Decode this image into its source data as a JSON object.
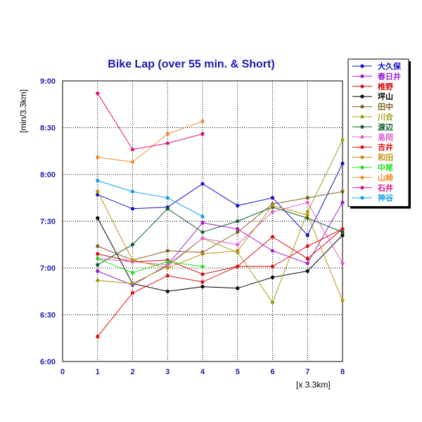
{
  "chart_data": {
    "type": "line",
    "title": "Bike Lap (over 55 min. & Short)",
    "ylabel": "[min/3.3km]",
    "xlabel": "[x 3.3km]",
    "xlim": [
      0,
      8
    ],
    "ylim": [
      360,
      540
    ],
    "x_ticks": [
      0,
      1,
      2,
      3,
      4,
      5,
      6,
      7,
      8
    ],
    "x_tick_labels": [
      "0",
      "1",
      "2",
      "3",
      "4",
      "5",
      "6",
      "7",
      "8"
    ],
    "y_ticks": [
      360,
      390,
      420,
      450,
      480,
      510,
      540
    ],
    "y_tick_labels": [
      "6:00",
      "6:30",
      "7:00",
      "7:30",
      "8:00",
      "8:30",
      "9:00"
    ],
    "grid": true,
    "legend_position": "top-right",
    "series": [
      {
        "name": "大久保",
        "color": "#1010c8",
        "x": [
          1,
          2,
          3,
          4,
          5,
          6,
          7,
          8
        ],
        "y": [
          467,
          458,
          459,
          474,
          460,
          465,
          441,
          487
        ]
      },
      {
        "name": "春日井",
        "color": "#a020d0",
        "x": [
          1,
          2,
          3,
          4,
          5,
          6,
          7,
          8
        ],
        "y": [
          418,
          409,
          422,
          449,
          445,
          431,
          423,
          462
        ]
      },
      {
        "name": "椎野",
        "color": "#d01010",
        "x": [
          1,
          2,
          3,
          4,
          5,
          6,
          7,
          8
        ],
        "y": [
          429,
          424,
          425,
          416,
          421,
          440,
          426,
          445
        ]
      },
      {
        "name": "坪山",
        "color": "#000000",
        "x": [
          1,
          2,
          3,
          4,
          5,
          6,
          7,
          8
        ],
        "y": [
          452,
          410,
          405,
          408,
          407,
          414,
          418,
          441
        ]
      },
      {
        "name": "田中",
        "color": "#806020",
        "x": [
          1,
          2,
          3,
          4,
          5,
          6,
          7,
          8
        ],
        "y": [
          434,
          425,
          431,
          430,
          443,
          461,
          465,
          469
        ]
      },
      {
        "name": "川合",
        "color": "#a0a010",
        "x": [
          1,
          2,
          3,
          4,
          5,
          6,
          7,
          8
        ],
        "y": [
          412,
          410,
          421,
          439,
          430,
          398,
          456,
          502
        ]
      },
      {
        "name": "渡辺",
        "color": "#106030",
        "x": [
          1,
          2,
          3,
          4,
          5,
          6,
          7,
          8
        ],
        "y": [
          422,
          435,
          458,
          443,
          450,
          459,
          452,
          443
        ]
      },
      {
        "name": "島岡",
        "color": "#e060d0",
        "x": [
          1,
          2,
          3,
          4,
          5,
          6,
          7,
          8
        ],
        "y": [
          426,
          424,
          422,
          439,
          435,
          456,
          462,
          423
        ]
      },
      {
        "name": "吉井",
        "color": "#e01010",
        "x": [
          1,
          2,
          3,
          4,
          5,
          6,
          7,
          8
        ],
        "y": [
          376,
          404,
          415,
          411,
          421,
          421,
          434,
          445
        ]
      },
      {
        "name": "和田",
        "color": "#c09010",
        "x": [
          1,
          2,
          3,
          4,
          5,
          6,
          7,
          8
        ],
        "y": [
          469,
          425,
          420,
          429,
          431,
          460,
          454,
          399
        ]
      },
      {
        "name": "中尾",
        "color": "#20e020",
        "x": [
          1,
          2,
          3,
          4
        ],
        "y": [
          426,
          417,
          424,
          421
        ]
      },
      {
        "name": "山崎",
        "color": "#f09030",
        "x": [
          1,
          2,
          3,
          4
        ],
        "y": [
          491,
          488,
          506,
          514
        ]
      },
      {
        "name": "石井",
        "color": "#e01080",
        "x": [
          1,
          2,
          3,
          4
        ],
        "y": [
          532,
          496,
          500,
          506
        ]
      },
      {
        "name": "神谷",
        "color": "#10a0e0",
        "x": [
          1,
          2,
          3,
          4
        ],
        "y": [
          476,
          469,
          465,
          453
        ]
      }
    ]
  }
}
